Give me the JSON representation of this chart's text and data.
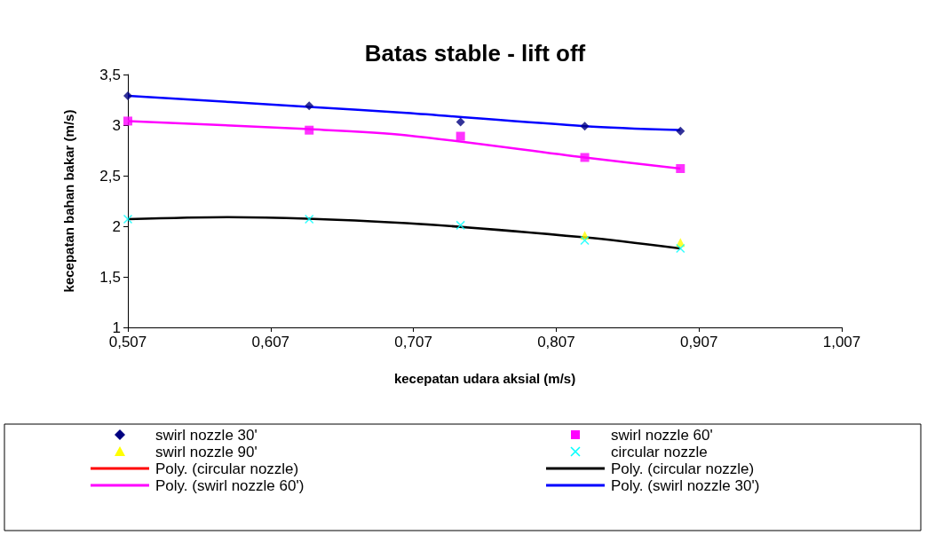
{
  "chart_data": {
    "type": "scatter",
    "title": "Batas stable - lift off",
    "xlabel": "kecepatan udara aksial (m/s)",
    "ylabel": "kecepatan bahan bakar (m/s)",
    "x": [
      0.507,
      0.634,
      0.74,
      0.827,
      0.894
    ],
    "xlim": [
      0.507,
      1.007
    ],
    "xticks": [
      {
        "value": 0.507,
        "label": "0,507"
      },
      {
        "value": 0.607,
        "label": "0,607"
      },
      {
        "value": 0.707,
        "label": "0,707"
      },
      {
        "value": 0.807,
        "label": "0,807"
      },
      {
        "value": 0.907,
        "label": "0,907"
      },
      {
        "value": 1.007,
        "label": "1,007"
      }
    ],
    "ylim": [
      1,
      3.5
    ],
    "yticks": [
      1,
      {
        "value": 1.5,
        "label": "1,5"
      },
      2,
      {
        "value": 2.5,
        "label": "2,5"
      },
      3,
      {
        "value": 3.5,
        "label": "3,5"
      }
    ],
    "grid": false,
    "legend": "bottom",
    "series": [
      {
        "name": "swirl nozzle 30'",
        "marker": "diamond",
        "color": "#000080",
        "values": [
          3.29,
          3.19,
          3.03,
          2.99,
          2.94
        ]
      },
      {
        "name": "swirl nozzle 60'",
        "marker": "square",
        "color": "#ff00ff",
        "values": [
          3.04,
          2.95,
          2.89,
          2.68,
          2.57
        ]
      },
      {
        "name": "swirl nozzle 90'",
        "marker": "triangle",
        "color": "#ffff00",
        "values": [
          null,
          null,
          null,
          1.91,
          1.84
        ]
      },
      {
        "name": "circular nozzle",
        "marker": "cross",
        "color": "#00ffff",
        "values": [
          2.07,
          2.07,
          2.01,
          1.86,
          1.78
        ]
      },
      {
        "name": "Poly. (circular nozzle)",
        "type": "line",
        "marker": "none",
        "color": "#ff0000",
        "values": [
          null,
          null,
          null,
          null,
          null
        ]
      },
      {
        "name": "Poly. (circular nozzle)",
        "type": "line",
        "marker": "none",
        "color": "#000000",
        "x": [
          0.507,
          0.577,
          0.702,
          0.827,
          0.894
        ],
        "values": [
          2.07,
          2.09,
          2.03,
          1.89,
          1.78
        ]
      },
      {
        "name": "Poly. (swirl nozzle 60')",
        "type": "line",
        "marker": "none",
        "color": "#ff00ff",
        "x": [
          0.507,
          0.634,
          0.702,
          0.827,
          0.894
        ],
        "values": [
          3.04,
          2.96,
          2.9,
          2.68,
          2.57
        ]
      },
      {
        "name": "Poly. (swirl nozzle 30')",
        "type": "line",
        "marker": "none",
        "color": "#0000ff",
        "x": [
          0.507,
          0.634,
          0.702,
          0.827,
          0.894
        ],
        "values": [
          3.29,
          3.18,
          3.12,
          2.99,
          2.95
        ]
      }
    ]
  }
}
